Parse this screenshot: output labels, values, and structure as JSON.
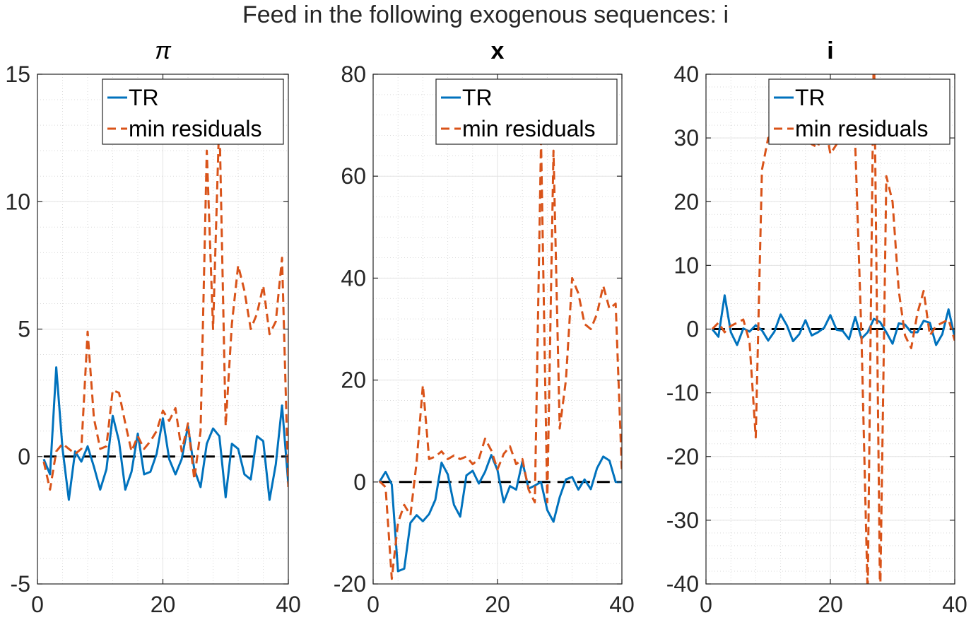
{
  "figure": {
    "suptitle": "Feed in the following exogenous sequences: i"
  },
  "colors": {
    "tr": "#0072BD",
    "min_residuals": "#D95319",
    "zero_line": "#000000",
    "grid": "#d9d9d9",
    "axis": "#262626"
  },
  "chart_data": [
    {
      "type": "line",
      "title": "π",
      "title_style": "italic",
      "xlabel": "",
      "ylabel": "",
      "xlim": [
        0,
        40
      ],
      "ylim": [
        -5,
        15
      ],
      "xticks": [
        0,
        20,
        40
      ],
      "yticks": [
        -5,
        0,
        5,
        10,
        15
      ],
      "grid": true,
      "minor_grid": true,
      "legend": {
        "placement": "top-right",
        "entries": [
          "TR",
          "min residuals"
        ]
      },
      "x": [
        1,
        2,
        3,
        4,
        5,
        6,
        7,
        8,
        9,
        10,
        11,
        12,
        13,
        14,
        15,
        16,
        17,
        18,
        19,
        20,
        21,
        22,
        23,
        24,
        25,
        26,
        27,
        28,
        29,
        30,
        31,
        32,
        33,
        34,
        35,
        36,
        37,
        38,
        39,
        40
      ],
      "series": [
        {
          "name": "TR",
          "style": "solid",
          "values": [
            -0.1,
            -0.7,
            3.5,
            0.3,
            -1.7,
            0.2,
            -0.2,
            0.4,
            -0.4,
            -1.3,
            -0.5,
            1.6,
            0.6,
            -1.3,
            -0.6,
            0.9,
            -0.7,
            -0.6,
            0.1,
            1.5,
            -0.1,
            -0.7,
            -0.1,
            1.2,
            -0.5,
            -1.2,
            0.5,
            1.1,
            0.8,
            -1.6,
            0.5,
            0.3,
            -0.7,
            -0.9,
            0.8,
            0.6,
            -1.7,
            -0.3,
            2.0,
            -1.1
          ]
        },
        {
          "name": "min residuals",
          "style": "dashed",
          "values": [
            -0.2,
            -1.3,
            0.2,
            0.5,
            0.3,
            0.1,
            0.3,
            4.9,
            1.5,
            0.3,
            0.4,
            2.6,
            2.5,
            1.3,
            0.2,
            0.8,
            0.3,
            0.6,
            1.0,
            1.8,
            1.4,
            1.9,
            0.2,
            1.3,
            -0.9,
            1.0,
            12.0,
            5.0,
            13.4,
            1.2,
            5.2,
            7.5,
            6.5,
            5.0,
            5.6,
            6.7,
            4.8,
            5.3,
            7.8,
            -1.2
          ]
        },
        {
          "name": "",
          "style": "zero",
          "values": [
            0,
            0,
            0,
            0,
            0,
            0,
            0,
            0,
            0,
            0,
            0,
            0,
            0,
            0,
            0,
            0,
            0,
            0,
            0,
            0,
            0,
            0,
            0,
            0,
            0,
            0,
            0,
            0,
            0,
            0,
            0,
            0,
            0,
            0,
            0,
            0,
            0,
            0,
            0,
            0
          ]
        }
      ]
    },
    {
      "type": "line",
      "title": "x",
      "title_style": "bold",
      "xlabel": "",
      "ylabel": "",
      "xlim": [
        0,
        40
      ],
      "ylim": [
        -20,
        80
      ],
      "xticks": [
        0,
        20,
        40
      ],
      "yticks": [
        -20,
        0,
        20,
        40,
        60,
        80
      ],
      "grid": true,
      "minor_grid": true,
      "legend": {
        "placement": "top-right",
        "entries": [
          "TR",
          "min residuals"
        ]
      },
      "x": [
        1,
        2,
        3,
        4,
        5,
        6,
        7,
        8,
        9,
        10,
        11,
        12,
        13,
        14,
        15,
        16,
        17,
        18,
        19,
        20,
        21,
        22,
        23,
        24,
        25,
        26,
        27,
        28,
        29,
        30,
        31,
        32,
        33,
        34,
        35,
        36,
        37,
        38,
        39,
        40
      ],
      "series": [
        {
          "name": "TR",
          "style": "solid",
          "values": [
            0,
            2,
            -0.5,
            -17.5,
            -17,
            -8,
            -6.5,
            -7.7,
            -6.3,
            -3.5,
            3.8,
            1.5,
            -4.5,
            -6.8,
            1.3,
            2.2,
            -0.3,
            2,
            5.3,
            2.3,
            -4,
            -0.8,
            -1.5,
            4,
            -1.3,
            -0.7,
            0,
            -5.5,
            -7.8,
            -3,
            0.5,
            1,
            -1.5,
            0.5,
            -1.4,
            2.7,
            5,
            4.2,
            0,
            0
          ]
        },
        {
          "name": "min residuals",
          "style": "dashed",
          "values": [
            0.2,
            -1,
            -19,
            -8,
            -4.5,
            -6.5,
            4,
            19,
            4.5,
            5,
            6,
            4.5,
            5.2,
            4.5,
            5,
            3.5,
            4.5,
            8.5,
            6.2,
            2.5,
            5.5,
            7,
            3.5,
            4.5,
            -1.5,
            -4,
            67,
            -4,
            65,
            10.5,
            20,
            40,
            37,
            31,
            30,
            33,
            38.5,
            34,
            35,
            2
          ]
        },
        {
          "name": "",
          "style": "zero",
          "values": [
            0,
            0,
            0,
            0,
            0,
            0,
            0,
            0,
            0,
            0,
            0,
            0,
            0,
            0,
            0,
            0,
            0,
            0,
            0,
            0,
            0,
            0,
            0,
            0,
            0,
            0,
            0,
            0,
            0,
            0,
            0,
            0,
            0,
            0,
            0,
            0,
            0,
            0,
            0,
            0
          ]
        }
      ]
    },
    {
      "type": "line",
      "title": "i",
      "title_style": "bold",
      "xlabel": "",
      "ylabel": "",
      "xlim": [
        0,
        40
      ],
      "ylim": [
        -40,
        40
      ],
      "xticks": [
        0,
        20,
        40
      ],
      "yticks": [
        -40,
        -30,
        -20,
        -10,
        0,
        10,
        20,
        30,
        40
      ],
      "grid": true,
      "minor_grid": true,
      "legend": {
        "placement": "top-right",
        "entries": [
          "TR",
          "min residuals"
        ]
      },
      "x": [
        1,
        2,
        3,
        4,
        5,
        6,
        7,
        8,
        9,
        10,
        11,
        12,
        13,
        14,
        15,
        16,
        17,
        18,
        19,
        20,
        21,
        22,
        23,
        24,
        25,
        26,
        27,
        28,
        29,
        30,
        31,
        32,
        33,
        34,
        35,
        36,
        37,
        38,
        39,
        40
      ],
      "series": [
        {
          "name": "TR",
          "style": "solid",
          "values": [
            0,
            -1.2,
            5.3,
            -0.5,
            -2.5,
            0.1,
            -0.4,
            0.6,
            -0.2,
            -1.8,
            -0.4,
            2.3,
            0.6,
            -1.9,
            -0.8,
            1.4,
            -1,
            -0.5,
            0.2,
            2.2,
            -0.1,
            -0.3,
            -1.6,
            1.9,
            -1.5,
            -0.5,
            1.6,
            1.1,
            -0.5,
            -2.3,
            0.9,
            0.7,
            -0.5,
            -0.5,
            1.3,
            1,
            -2.5,
            -0.8,
            3.1,
            -1.3
          ]
        },
        {
          "name": "min residuals",
          "style": "dashed",
          "values": [
            0,
            1,
            -0.5,
            0.5,
            1,
            1.5,
            -2,
            -17,
            25,
            30,
            30.5,
            31,
            31,
            30.5,
            31,
            30.5,
            29,
            28.5,
            33,
            27.5,
            29,
            31,
            32,
            29,
            -1,
            -42,
            46,
            -43,
            24,
            20,
            6,
            -1,
            -3,
            2.5,
            6,
            -1,
            0.5,
            1,
            1.5,
            -1.8
          ]
        },
        {
          "name": "",
          "style": "zero",
          "values": [
            0,
            0,
            0,
            0,
            0,
            0,
            0,
            0,
            0,
            0,
            0,
            0,
            0,
            0,
            0,
            0,
            0,
            0,
            0,
            0,
            0,
            0,
            0,
            0,
            0,
            0,
            0,
            0,
            0,
            0,
            0,
            0,
            0,
            0,
            0,
            0,
            0,
            0,
            0,
            0
          ]
        }
      ]
    }
  ]
}
